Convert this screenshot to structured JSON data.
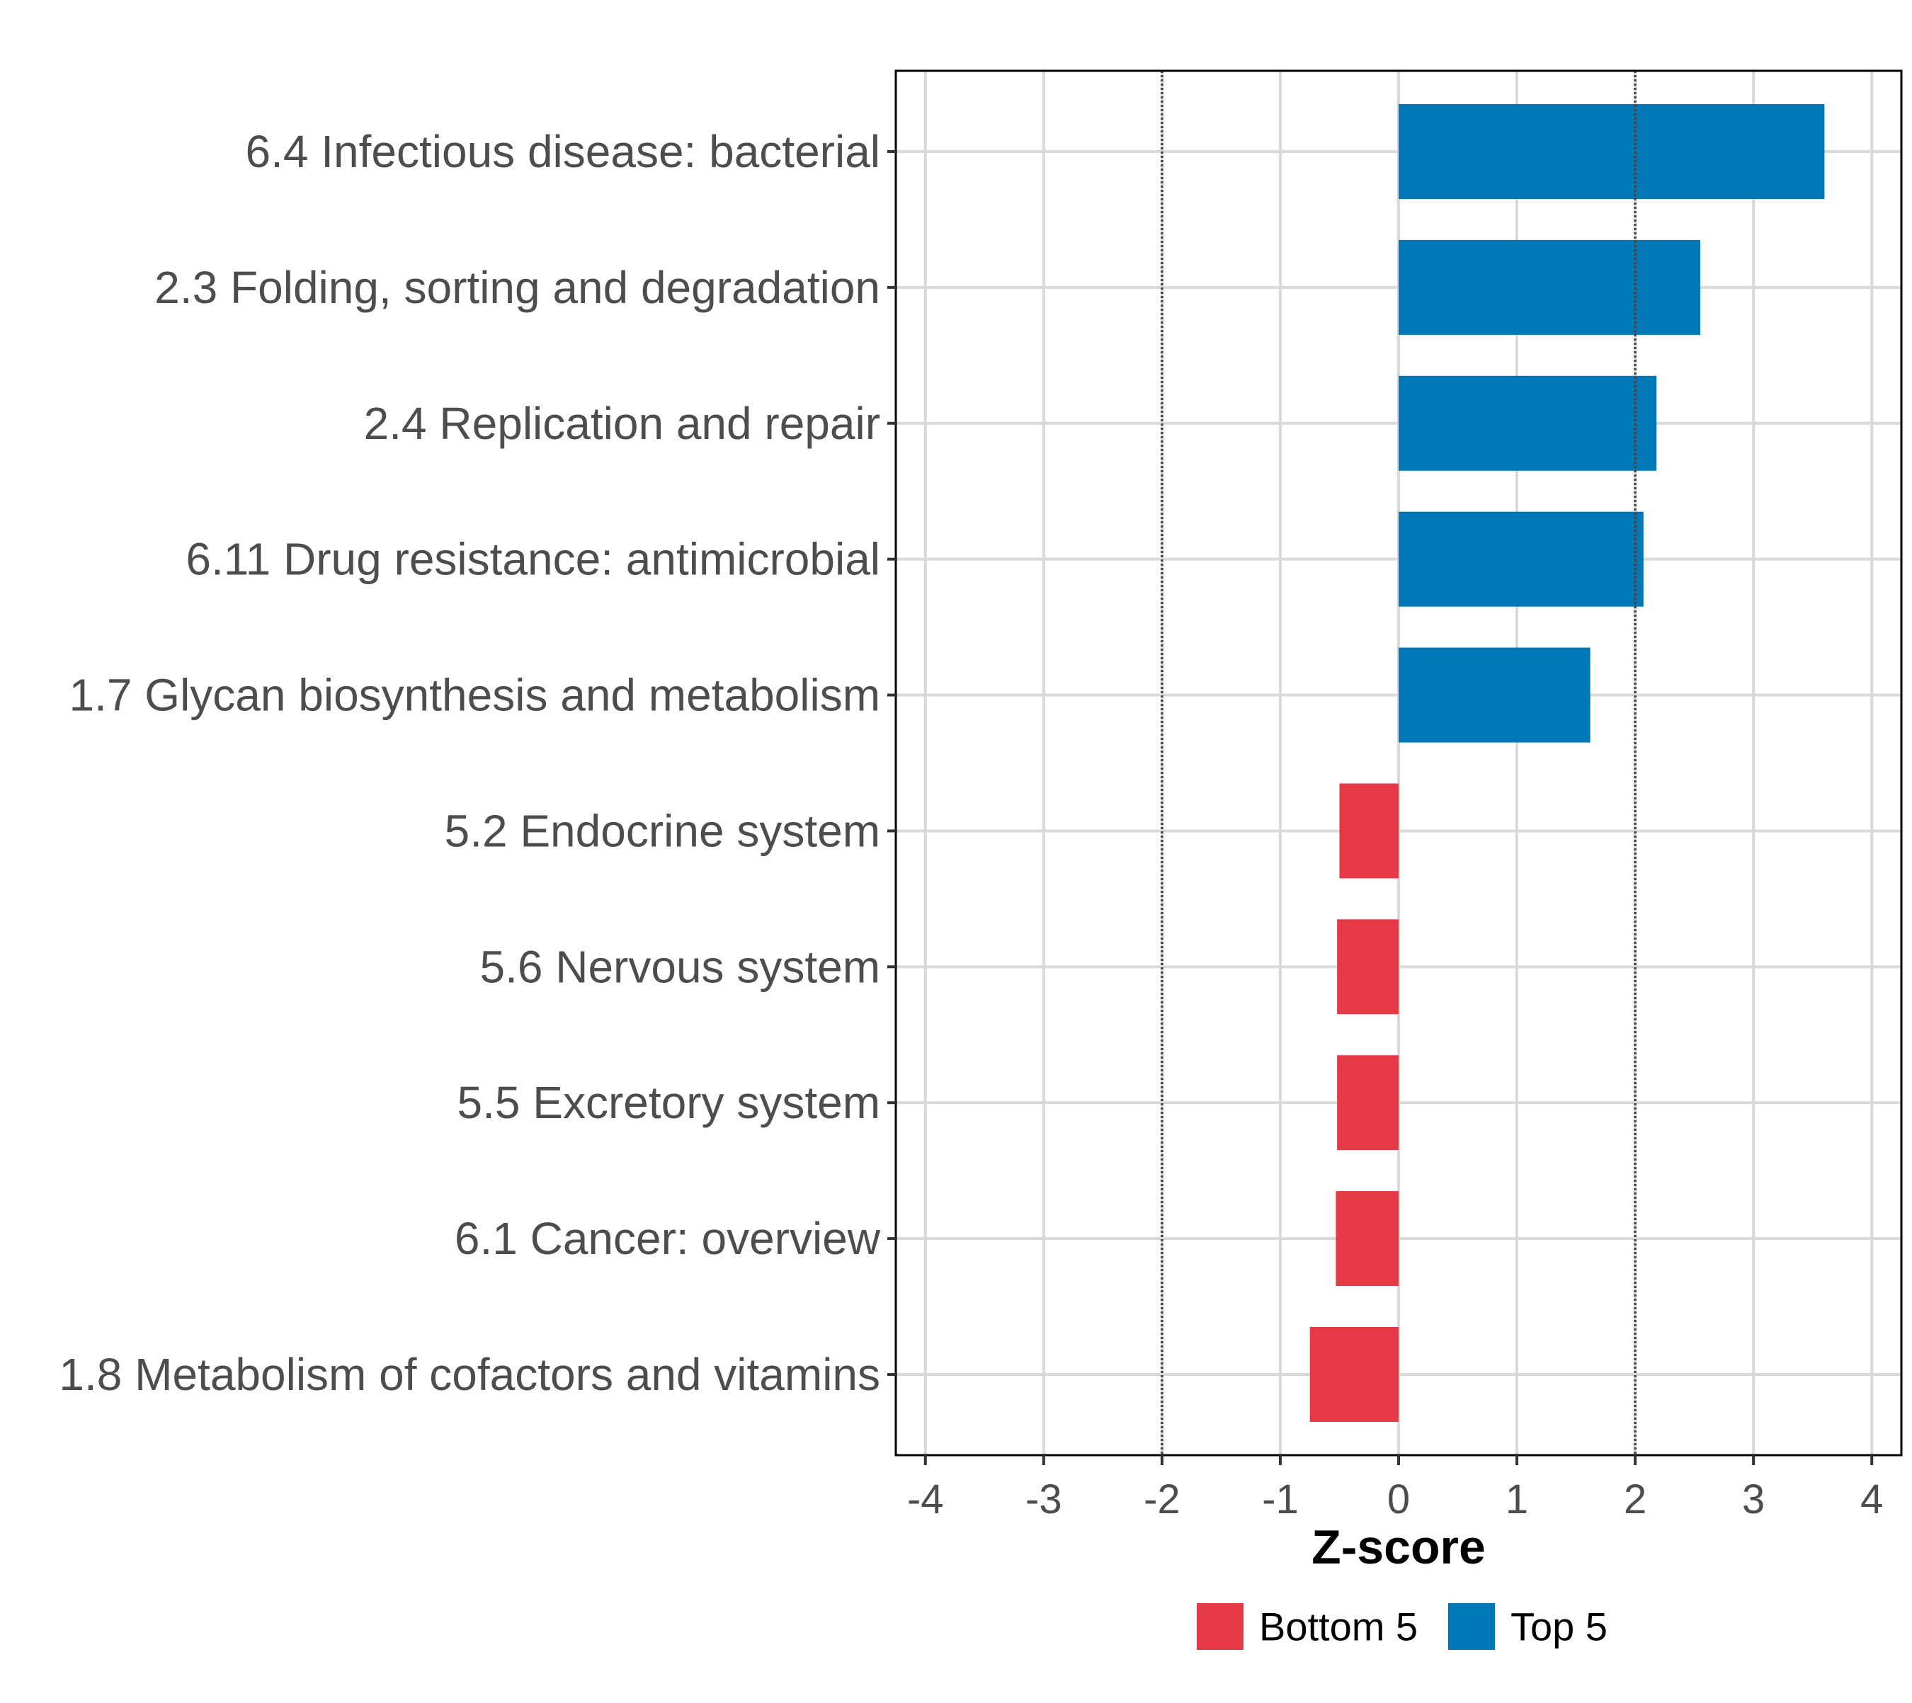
{
  "chart_data": {
    "type": "bar",
    "orientation": "horizontal",
    "title": "",
    "xlabel": "Z-score",
    "ylabel": "",
    "xlim": [
      -4.25,
      4.25
    ],
    "x_ticks": [
      -4,
      -3,
      -2,
      -1,
      0,
      1,
      2,
      3,
      4
    ],
    "x_tick_labels": [
      "-4",
      "-3",
      "-2",
      "-1",
      "0",
      "1",
      "2",
      "3",
      "4"
    ],
    "reference_lines": [
      {
        "x": -2,
        "style": "dotted"
      },
      {
        "x": 2,
        "style": "dotted"
      }
    ],
    "grid": true,
    "legend_position": "bottom",
    "legend": [
      {
        "group": "bottom",
        "label": "Bottom 5",
        "color": "#E63946"
      },
      {
        "group": "top",
        "label": "Top 5",
        "color": "#0077B6"
      }
    ],
    "categories": [
      "6.4 Infectious disease: bacterial",
      "2.3 Folding, sorting and degradation",
      "2.4 Replication and repair",
      "6.11 Drug resistance: antimicrobial",
      "1.7 Glycan biosynthesis and metabolism",
      "5.2 Endocrine system",
      "5.6 Nervous system",
      "5.5 Excretory system",
      "6.1 Cancer: overview",
      "1.8 Metabolism of cofactors and vitamins"
    ],
    "values": [
      3.6,
      2.55,
      2.18,
      2.07,
      1.62,
      -0.5,
      -0.52,
      -0.52,
      -0.53,
      -0.75
    ],
    "groups": [
      "top",
      "top",
      "top",
      "top",
      "top",
      "bottom",
      "bottom",
      "bottom",
      "bottom",
      "bottom"
    ]
  }
}
